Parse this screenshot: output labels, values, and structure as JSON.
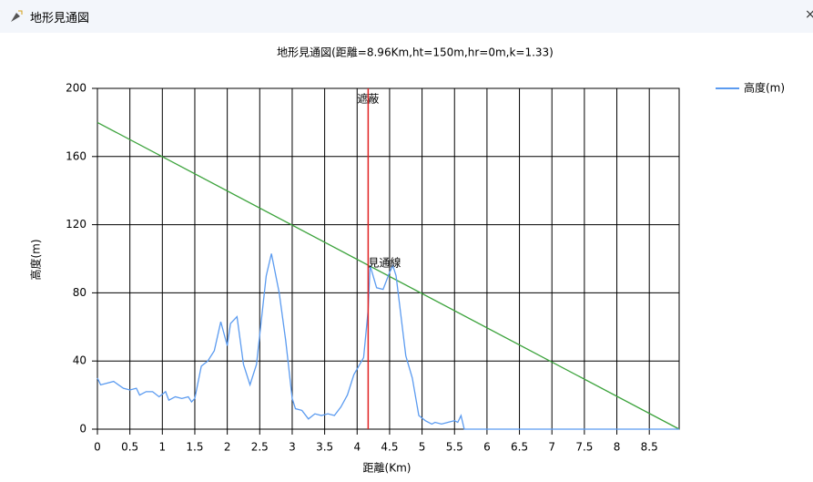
{
  "window": {
    "title": "地形見通図",
    "close": "×"
  },
  "chart_data": {
    "type": "line",
    "title": "地形見通図(距離=8.96Km,ht=150m,hr=0m,k=1.33)",
    "x_label": "距離(Km)",
    "y_label": "高度(m)",
    "xlim": [
      0,
      8.96
    ],
    "ylim": [
      0,
      200
    ],
    "xticks": [
      0,
      0.5,
      1,
      1.5,
      2,
      2.5,
      3,
      3.5,
      4,
      4.5,
      5,
      5.5,
      6,
      6.5,
      7,
      7.5,
      8,
      8.5
    ],
    "yticks": [
      0,
      40,
      80,
      120,
      160,
      200
    ],
    "grid": true,
    "legend": "right",
    "series": [
      {
        "name": "高度(m)",
        "color": "#5b9bf0",
        "x": [
          0,
          0.05,
          0.25,
          0.4,
          0.5,
          0.6,
          0.65,
          0.75,
          0.85,
          0.95,
          1.05,
          1.1,
          1.2,
          1.3,
          1.4,
          1.45,
          1.5,
          1.6,
          1.7,
          1.8,
          1.9,
          2.0,
          2.05,
          2.15,
          2.25,
          2.35,
          2.45,
          2.6,
          2.68,
          2.8,
          2.9,
          3.0,
          3.05,
          3.15,
          3.25,
          3.35,
          3.45,
          3.55,
          3.65,
          3.75,
          3.85,
          3.95,
          4.1,
          4.17,
          4.2,
          4.3,
          4.4,
          4.5,
          4.55,
          4.6,
          4.75,
          4.85,
          4.95,
          5.05,
          5.15,
          5.2,
          5.3,
          5.4,
          5.5,
          5.55,
          5.6,
          5.65,
          8.96
        ],
        "values": [
          30,
          26,
          28,
          24,
          23,
          24,
          20,
          22,
          22,
          19,
          22,
          17,
          19,
          18,
          19,
          16,
          18,
          37,
          40,
          46,
          63,
          49,
          62,
          66,
          38,
          26,
          38,
          90,
          103,
          80,
          52,
          18,
          12,
          11,
          6,
          9,
          8,
          9,
          8,
          13,
          20,
          32,
          42,
          70,
          96,
          83,
          82,
          92,
          96,
          90,
          43,
          30,
          8,
          5,
          3,
          4,
          3,
          4,
          5,
          4,
          8,
          0,
          0
        ]
      }
    ],
    "sight_line": {
      "label": "見通線",
      "color": "#3ca33c",
      "x": [
        0,
        8.96
      ],
      "values": [
        180,
        0
      ]
    },
    "obstruction": {
      "label": "遮蔽",
      "color": "#e02020",
      "x": 4.17
    }
  }
}
